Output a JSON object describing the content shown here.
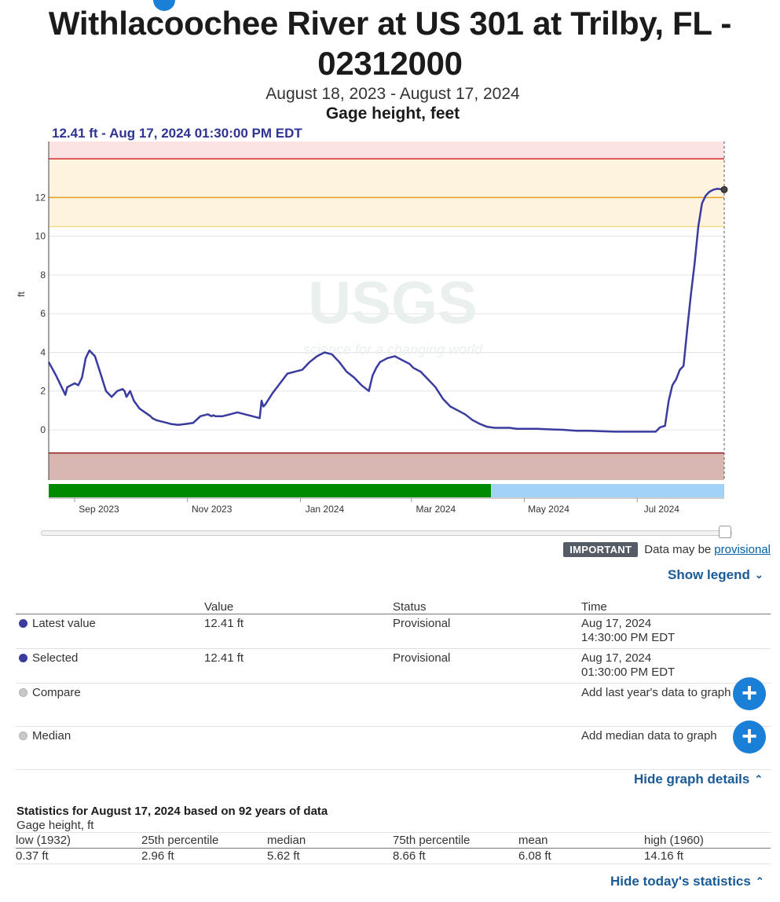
{
  "header": {
    "title": "Withlacoochee River at US 301 at Trilby, FL - 02312000",
    "date_range": "August 18, 2023 - August 17, 2024",
    "parameter": "Gage height, feet",
    "selected_readout": "12.41 ft - Aug 17, 2024 01:30:00 PM EDT"
  },
  "chart_data": {
    "type": "line",
    "title": "",
    "ylabel": "ft",
    "ylim": [
      -2.6,
      14.9
    ],
    "y_ticks": [
      0,
      2,
      4,
      6,
      8,
      10,
      12
    ],
    "x_ticks": [
      "Sep 2023",
      "Nov 2023",
      "Jan 2024",
      "Mar 2024",
      "May 2024",
      "Jul 2024"
    ],
    "x_tick_dates": [
      "2023-09-01",
      "2023-11-01",
      "2024-01-01",
      "2024-03-01",
      "2024-05-01",
      "2024-07-01"
    ],
    "x_range": [
      "2023-08-18",
      "2024-08-17"
    ],
    "watermark": {
      "text": "USGS",
      "tagline": "science for a changing world"
    },
    "thresholds": [
      {
        "value": 14.0,
        "color": "#d7282f"
      },
      {
        "value": 12.0,
        "color": "#e0a322"
      },
      {
        "value": 10.5,
        "color": "#f5e08a"
      },
      {
        "value": -1.2,
        "color": "#8b1a1a"
      }
    ],
    "approval_bar": [
      {
        "label": "Approved",
        "start": "2023-08-18",
        "end": "2024-04-13",
        "color": "#008a00"
      },
      {
        "label": "Provisional",
        "start": "2024-04-13",
        "end": "2024-08-17",
        "color": "#a2d2f7"
      }
    ],
    "series": [
      {
        "name": "Gage height",
        "color": "#3a3b9f",
        "x": [
          "2023-08-18",
          "2023-08-22",
          "2023-08-27",
          "2023-08-28",
          "2023-08-30",
          "2023-09-01",
          "2023-09-03",
          "2023-09-05",
          "2023-09-07",
          "2023-09-09",
          "2023-09-12",
          "2023-09-15",
          "2023-09-18",
          "2023-09-21",
          "2023-09-24",
          "2023-09-27",
          "2023-09-28",
          "2023-09-29",
          "2023-10-01",
          "2023-10-03",
          "2023-10-06",
          "2023-10-09",
          "2023-10-12",
          "2023-10-13",
          "2023-10-14",
          "2023-10-15",
          "2023-10-17",
          "2023-10-19",
          "2023-10-23",
          "2023-10-27",
          "2023-10-31",
          "2023-11-04",
          "2023-11-08",
          "2023-11-12",
          "2023-11-14",
          "2023-11-15",
          "2023-11-16",
          "2023-11-20",
          "2023-11-24",
          "2023-11-28",
          "2023-12-02",
          "2023-12-06",
          "2023-12-10",
          "2023-12-11",
          "2023-12-12",
          "2023-12-13",
          "2023-12-15",
          "2023-12-17",
          "2023-12-21",
          "2023-12-25",
          "2023-12-29",
          "2024-01-02",
          "2024-01-06",
          "2024-01-10",
          "2024-01-14",
          "2024-01-18",
          "2024-01-22",
          "2024-01-26",
          "2024-01-30",
          "2024-02-03",
          "2024-02-07",
          "2024-02-09",
          "2024-02-11",
          "2024-02-13",
          "2024-02-15",
          "2024-02-17",
          "2024-02-21",
          "2024-02-25",
          "2024-02-29",
          "2024-03-02",
          "2024-03-06",
          "2024-03-10",
          "2024-03-14",
          "2024-03-18",
          "2024-03-22",
          "2024-03-26",
          "2024-03-30",
          "2024-04-03",
          "2024-04-07",
          "2024-04-11",
          "2024-04-15",
          "2024-04-19",
          "2024-04-23",
          "2024-04-27",
          "2024-05-01",
          "2024-05-08",
          "2024-05-15",
          "2024-05-22",
          "2024-05-29",
          "2024-06-05",
          "2024-06-12",
          "2024-06-19",
          "2024-06-26",
          "2024-07-03",
          "2024-07-06",
          "2024-07-09",
          "2024-07-11",
          "2024-07-12",
          "2024-07-13",
          "2024-07-14",
          "2024-07-16",
          "2024-07-18",
          "2024-07-20",
          "2024-07-22",
          "2024-07-24",
          "2024-07-26",
          "2024-07-28",
          "2024-07-30",
          "2024-08-01",
          "2024-08-03",
          "2024-08-05",
          "2024-08-07",
          "2024-08-09",
          "2024-08-11",
          "2024-08-13",
          "2024-08-15",
          "2024-08-17"
        ],
        "y": [
          3.5,
          2.8,
          1.8,
          2.2,
          2.3,
          2.4,
          2.3,
          2.7,
          3.7,
          4.1,
          3.8,
          2.9,
          2.0,
          1.7,
          2.0,
          2.1,
          2.0,
          1.7,
          2.0,
          1.5,
          1.1,
          0.9,
          0.7,
          0.6,
          0.55,
          0.5,
          0.45,
          0.4,
          0.3,
          0.25,
          0.3,
          0.35,
          0.7,
          0.8,
          0.7,
          0.75,
          0.7,
          0.7,
          0.8,
          0.9,
          0.8,
          0.7,
          0.6,
          1.5,
          1.2,
          1.3,
          1.6,
          1.9,
          2.4,
          2.9,
          3.0,
          3.1,
          3.5,
          3.8,
          4.0,
          3.9,
          3.5,
          3.0,
          2.7,
          2.3,
          2.0,
          2.8,
          3.2,
          3.5,
          3.6,
          3.7,
          3.8,
          3.6,
          3.4,
          3.2,
          3.0,
          2.6,
          2.2,
          1.6,
          1.2,
          1.0,
          0.8,
          0.5,
          0.3,
          0.15,
          0.1,
          0.1,
          0.1,
          0.05,
          0.05,
          0.05,
          0.02,
          0.0,
          -0.05,
          -0.05,
          -0.08,
          -0.1,
          -0.1,
          -0.1,
          -0.1,
          -0.1,
          -0.1,
          0.0,
          0.1,
          0.15,
          0.2,
          1.5,
          2.3,
          2.6,
          3.1,
          3.3,
          5.2,
          7.0,
          8.6,
          10.5,
          11.7,
          12.1,
          12.3,
          12.4,
          12.45,
          12.43,
          12.41
        ]
      }
    ],
    "selected_point": {
      "x": "2024-08-17",
      "y": 12.41
    }
  },
  "notice": {
    "badge": "IMPORTANT",
    "text": "Data may be",
    "link": "provisional"
  },
  "toggles": {
    "show_legend": "Show legend",
    "hide_graph_details": "Hide graph details",
    "hide_stats": "Hide today's statistics"
  },
  "legend_table": {
    "headers": [
      "",
      "Value",
      "Status",
      "Time"
    ],
    "rows": [
      {
        "label": "Latest value",
        "value": "12.41 ft",
        "status": "Provisional",
        "time": "Aug 17, 2024",
        "time2": "14:30:00 PM EDT"
      },
      {
        "label": "Selected",
        "value": "12.41 ft",
        "status": "Provisional",
        "time": "Aug 17, 2024",
        "time2": "01:30:00 PM EDT"
      },
      {
        "label": "Compare",
        "value": "",
        "status": "",
        "time": "Add last year's data to graph",
        "time2": ""
      },
      {
        "label": "Median",
        "value": "",
        "status": "",
        "time": "Add median data to graph",
        "time2": ""
      }
    ],
    "plus_symbol": "+"
  },
  "statistics": {
    "title": "Statistics for August 17, 2024 based on 92 years of data",
    "subtitle": "Gage height, ft",
    "headers": [
      "low (1932)",
      "25th percentile",
      "median",
      "75th percentile",
      "mean",
      "high (1960)"
    ],
    "values": [
      "0.37 ft",
      "2.96 ft",
      "5.62 ft",
      "8.66 ft",
      "6.08 ft",
      "14.16 ft"
    ]
  }
}
